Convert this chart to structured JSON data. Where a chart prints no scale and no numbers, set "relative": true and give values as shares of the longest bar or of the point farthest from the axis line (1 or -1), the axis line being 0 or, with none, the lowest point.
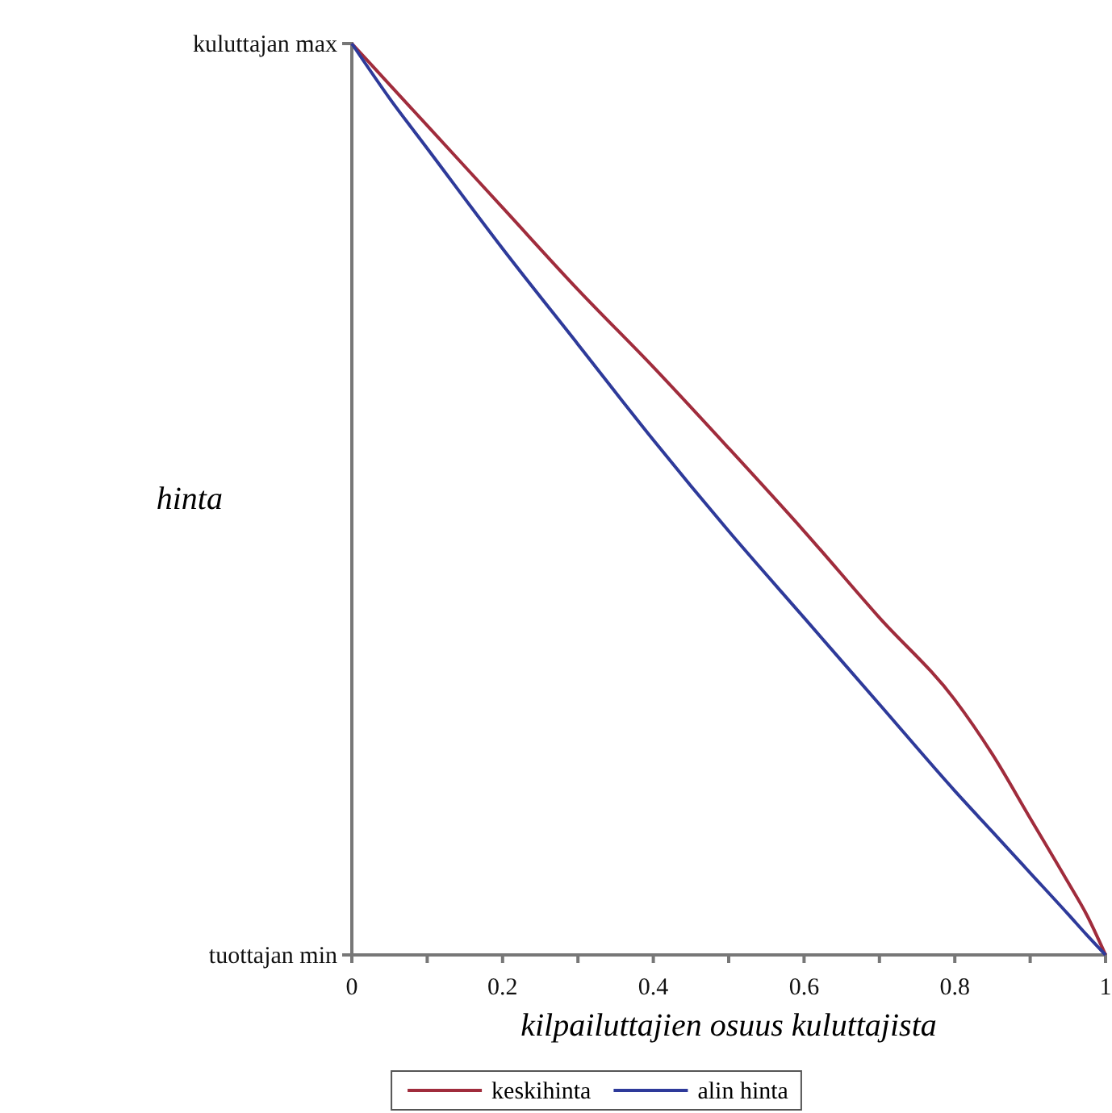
{
  "chart_data": {
    "type": "line",
    "xlabel": "kilpailuttajien osuus kuluttajista",
    "ylabel": "hinta",
    "x": [
      0,
      0.05,
      0.1,
      0.2,
      0.3,
      0.4,
      0.5,
      0.6,
      0.7,
      0.8,
      0.85,
      0.9,
      0.95,
      0.975,
      1
    ],
    "series": [
      {
        "name": "keskihinta",
        "color": "#a02c3c",
        "values": [
          1,
          0.955,
          0.91,
          0.82,
          0.73,
          0.645,
          0.556,
          0.465,
          0.37,
          0.28,
          0.22,
          0.15,
          0.08,
          0.044,
          0
        ]
      },
      {
        "name": "alin hinta",
        "color": "#2e3a9a",
        "values": [
          1,
          0.94,
          0.885,
          0.775,
          0.67,
          0.565,
          0.465,
          0.37,
          0.275,
          0.18,
          0.135,
          0.09,
          0.045,
          0.022,
          0
        ]
      }
    ],
    "xlim": [
      0,
      1
    ],
    "xticks": [
      0,
      {
        "value": 0.1,
        "label": null
      },
      {
        "value": 0.2,
        "label": "0.2"
      },
      {
        "value": 0.3,
        "label": null
      },
      {
        "value": 0.4,
        "label": "0.4"
      },
      {
        "value": 0.5,
        "label": null
      },
      {
        "value": 0.6,
        "label": "0.6"
      },
      {
        "value": 0.7,
        "label": null
      },
      {
        "value": 0.8,
        "label": "0.8"
      },
      {
        "value": 0.9,
        "label": null
      },
      1
    ],
    "relative": true,
    "annotations": [
      {
        "text": "kuluttajan max",
        "x": 0,
        "y": 1
      },
      "tuottajan min"
    ],
    "grid": false,
    "legend": "bottom",
    "marker": "none",
    "line_style": "solid"
  }
}
